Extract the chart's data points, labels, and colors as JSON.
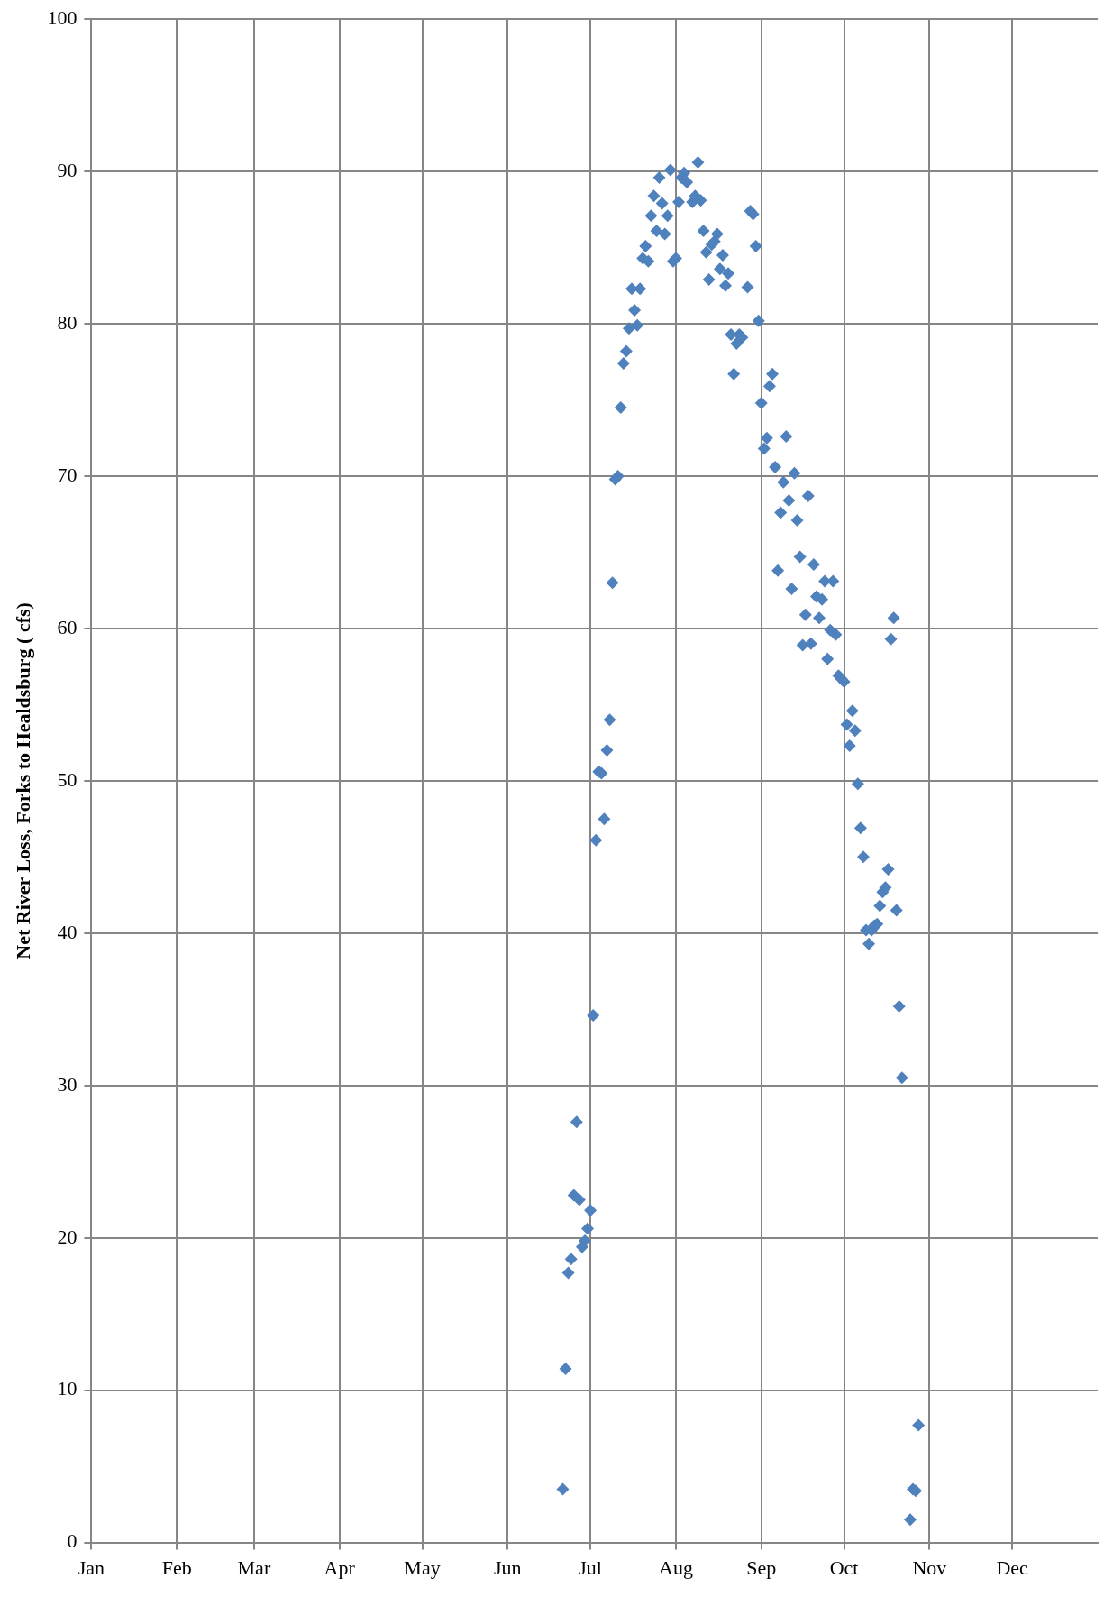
{
  "chart_data": {
    "type": "scatter",
    "ylabel": "Net River Loss, Forks to Healdsburg ( cfs)",
    "x": [
      "--06-21",
      "--06-22",
      "--06-23",
      "--06-24",
      "--06-25",
      "--06-27",
      "--06-26",
      "--06-28",
      "--06-29",
      "--06-30",
      "--07-01",
      "--07-02",
      "--07-03",
      "--07-04",
      "--07-05",
      "--07-06",
      "--07-07",
      "--07-08",
      "--07-09",
      "--07-10",
      "--07-11",
      "--07-12",
      "--07-13",
      "--07-14",
      "--07-15",
      "--07-16",
      "--07-17",
      "--07-18",
      "--07-19",
      "--07-20",
      "--07-21",
      "--07-22",
      "--07-23",
      "--07-24",
      "--07-25",
      "--07-26",
      "--07-27",
      "--07-28",
      "--07-29",
      "--07-30",
      "--07-31",
      "--08-01",
      "--08-02",
      "--08-03",
      "--08-04",
      "--08-05",
      "--08-07",
      "--08-08",
      "--08-09",
      "--08-10",
      "--08-11",
      "--08-12",
      "--08-13",
      "--08-14",
      "--08-15",
      "--08-16",
      "--08-17",
      "--08-18",
      "--08-19",
      "--08-20",
      "--08-21",
      "--08-22",
      "--08-23",
      "--08-24",
      "--08-25",
      "--08-27",
      "--08-28",
      "--08-29",
      "--08-30",
      "--08-31",
      "--09-01",
      "--09-02",
      "--09-03",
      "--09-04",
      "--09-05",
      "--09-06",
      "--09-07",
      "--09-08",
      "--09-09",
      "--09-10",
      "--09-11",
      "--09-12",
      "--09-13",
      "--09-14",
      "--09-15",
      "--09-16",
      "--09-17",
      "--09-18",
      "--09-19",
      "--09-20",
      "--09-21",
      "--09-22",
      "--09-23",
      "--09-24",
      "--09-25",
      "--09-26",
      "--09-27",
      "--09-28",
      "--09-29",
      "--09-30",
      "--10-01",
      "--10-02",
      "--10-03",
      "--10-04",
      "--10-05",
      "--10-06",
      "--10-07",
      "--10-08",
      "--10-09",
      "--10-10",
      "--10-11",
      "--10-12",
      "--10-13",
      "--10-14",
      "--10-15",
      "--10-16",
      "--10-17",
      "--10-18",
      "--10-19",
      "--10-20",
      "--10-21",
      "--10-22",
      "--10-25",
      "--10-26",
      "--10-27",
      "--10-28"
    ],
    "series": [
      {
        "color": "#4f81bd",
        "values": [
          3.5,
          11.4,
          17.7,
          18.6,
          22.8,
          22.5,
          27.6,
          19.4,
          19.8,
          20.6,
          21.8,
          34.6,
          46.1,
          50.6,
          50.5,
          47.5,
          52.0,
          54.0,
          63.0,
          69.8,
          70.0,
          74.5,
          77.4,
          78.2,
          79.7,
          82.3,
          80.9,
          79.9,
          82.3,
          84.3,
          85.1,
          84.1,
          87.1,
          88.4,
          86.1,
          89.6,
          87.9,
          85.9,
          87.1,
          90.1,
          84.1,
          84.3,
          88.0,
          89.6,
          89.9,
          89.3,
          88.0,
          88.4,
          90.6,
          88.1,
          86.1,
          84.7,
          82.9,
          85.2,
          85.4,
          85.9,
          83.6,
          84.5,
          82.5,
          83.3,
          79.3,
          76.7,
          78.7,
          79.3,
          79.1,
          82.4,
          87.4,
          87.2,
          85.1,
          80.2,
          74.8,
          71.8,
          72.5,
          75.9,
          76.7,
          70.6,
          63.8,
          67.6,
          69.6,
          72.6,
          68.4,
          62.6,
          70.2,
          67.1,
          64.7,
          58.9,
          60.9,
          68.7,
          59.0,
          64.2,
          62.1,
          60.7,
          61.9,
          63.1,
          58.0,
          59.9,
          63.1,
          59.6,
          56.9,
          56.7,
          56.5,
          53.7,
          52.3,
          54.6,
          53.3,
          49.8,
          46.9,
          45.0,
          40.2,
          39.3,
          40.2,
          40.5,
          40.6,
          41.8,
          42.7,
          43.0,
          44.2,
          59.3,
          60.7,
          41.5,
          35.2,
          30.5,
          1.5,
          3.5,
          3.4,
          7.7
        ]
      }
    ],
    "xlim": [
      "--01-01",
      "--12-31"
    ],
    "xticks": [
      {
        "value": "--01-01",
        "label": "Jan"
      },
      {
        "value": "--02-01",
        "label": "Feb"
      },
      {
        "value": "--03-01",
        "label": "Mar"
      },
      {
        "value": "--04-01",
        "label": "Apr"
      },
      {
        "value": "--05-01",
        "label": "May"
      },
      {
        "value": "--06-01",
        "label": "Jun"
      },
      {
        "value": "--07-01",
        "label": "Jul"
      },
      {
        "value": "--08-01",
        "label": "Aug"
      },
      {
        "value": "--09-01",
        "label": "Sep"
      },
      {
        "value": "--10-01",
        "label": "Oct"
      },
      {
        "value": "--11-01",
        "label": "Nov"
      },
      {
        "value": "--12-01",
        "label": "Dec"
      }
    ],
    "ylim": [
      0,
      100
    ],
    "yticks": [
      0,
      10,
      20,
      30,
      40,
      50,
      60,
      70,
      80,
      90,
      100
    ],
    "grid": true,
    "legend": false,
    "marker": "diamond"
  }
}
